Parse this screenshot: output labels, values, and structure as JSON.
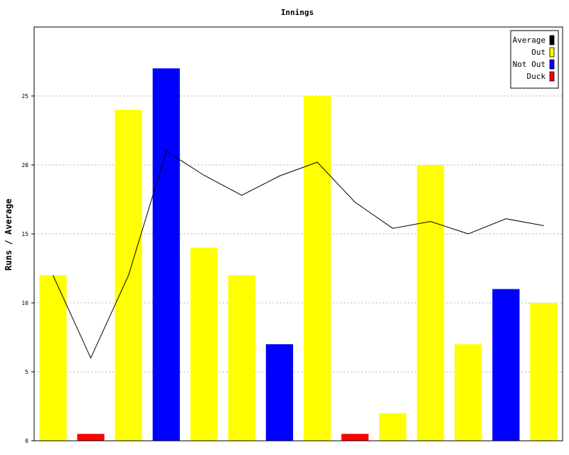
{
  "chart_data": {
    "type": "bar",
    "title": "Innings",
    "xlabel": "",
    "ylabel": "Runs / Average",
    "ylim": [
      0,
      30
    ],
    "yticks": [
      0,
      5,
      10,
      15,
      20,
      25
    ],
    "grid": true,
    "legend_position": "top-right",
    "legend": [
      {
        "label": "Average",
        "color": "#000000"
      },
      {
        "label": "Out",
        "color": "#ffff00"
      },
      {
        "label": "Not Out",
        "color": "#0000ff"
      },
      {
        "label": "Duck",
        "color": "#ff0000"
      }
    ],
    "bars": [
      {
        "value": 12,
        "status": "Out"
      },
      {
        "value": 0.5,
        "status": "Duck"
      },
      {
        "value": 24,
        "status": "Out"
      },
      {
        "value": 27,
        "status": "Not Out"
      },
      {
        "value": 14,
        "status": "Out"
      },
      {
        "value": 12,
        "status": "Out"
      },
      {
        "value": 7,
        "status": "Not Out"
      },
      {
        "value": 25,
        "status": "Out"
      },
      {
        "value": 0.5,
        "status": "Duck"
      },
      {
        "value": 2,
        "status": "Out"
      },
      {
        "value": 20,
        "status": "Out"
      },
      {
        "value": 7,
        "status": "Out"
      },
      {
        "value": 11,
        "status": "Not Out"
      },
      {
        "value": 10,
        "status": "Out"
      }
    ],
    "average": [
      12,
      6,
      12,
      21,
      19.25,
      17.8,
      19.2,
      20.2,
      17.3,
      15.4,
      15.9,
      15,
      16.1,
      15.6
    ]
  }
}
